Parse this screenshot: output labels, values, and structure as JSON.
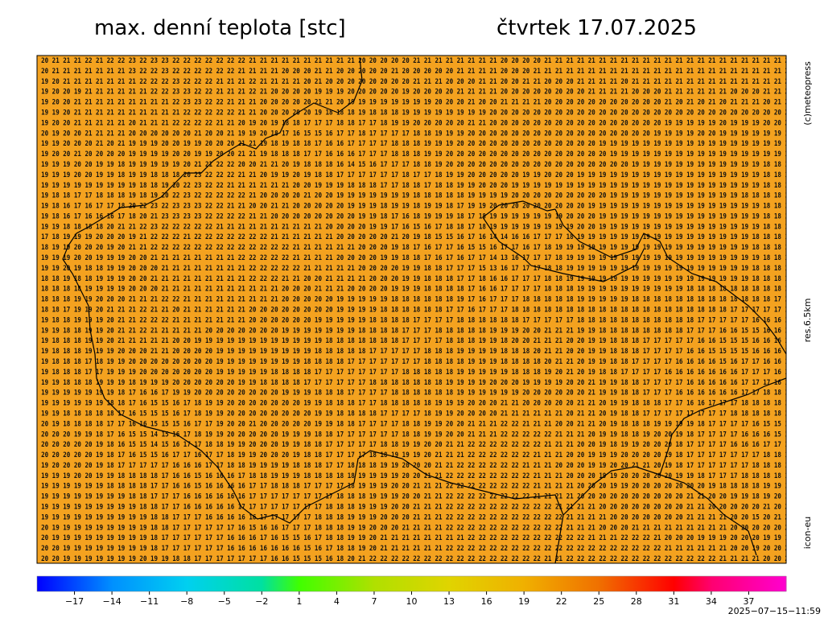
{
  "header": {
    "title": "max. denní teplota [stc]",
    "date": "čtvrtek 17.07.2025"
  },
  "credits": {
    "copyright": "(c)meteopress",
    "resolution": "res.6.5km",
    "model": "icon-eu",
    "timestamp": "2025−07−15−11:59"
  },
  "map": {
    "rows": [
      "0 20 21 21 21 22 21 22 22 23 22 23 23 22 22 22 22 22 22 22 21 21 21 21 21 21 21 21 21 21 20 20 20 20 20 21 21 21 21 21 21 21 21 20 20 20 20 21 21 21 21 21 21 21 21 21 21 21 21 21 21 21 21 21 21 21 21 21 21 2",
      "0 20 21 21 21 21 21 21 21 23 22 22 23 22 22 22 22 22 22 21 21 21 21 20 20 20 21 21 20 20 20 20 20 21 20 20 20 20 20 21 21 21 21 20 20 20 21 21 21 21 21 21 21 21 21 21 21 21 21 21 21 21 21 21 21 21 21 21 21 2",
      "9 19 20 21 21 21 21 21 21 21 22 22 22 23 22 22 22 21 21 21 22 21 21 21 21 20 21 20 20 20 20 20 20 20 20 21 21 21 20 20 20 21 21 20 20 21 21 20 20 20 21 21 21 21 20 21 21 21 21 21 21 21 21 21 21 21 21 21 21 2",
      "9 19 20 20 19 21 21 21 21 21 21 22 22 23 23 22 22 21 21 21 22 21 20 20 20 20 19 19 19 20 20 20 20 20 19 20 20 20 20 21 21 21 21 20 20 20 20 20 20 20 20 21 21 21 21 20 20 20 21 21 21 21 21 21 20 20 20 21 21 2",
      "9 19 20 20 21 21 21 21 21 21 21 21 21 22 23 23 22 22 21 21 21 20 20 20 20 20 21 21 20 19 19 19 19 19 19 19 19 20 20 20 21 20 20 21 21 21 21 20 20 20 20 20 20 20 20 20 20 20 21 20 21 20 21 20 21 21 21 20 21 2",
      "9 19 19 20 21 21 21 21 21 21 21 21 21 21 22 22 22 22 22 21 21 20 20 20 20 20 19 18 18 18 19 18 18 18 19 19 19 19 19 19 19 19 20 20 20 20 20 20 20 20 20 20 20 20 20 20 20 20 20 20 20 20 20 20 20 20 20 20 20 2",
      "9 19 20 20 21 21 21 21 21 20 21 21 21 22 22 22 22 21 21 20 19 20 19 18 18 17 17 17 18 18 17 17 18 19 19 20 20 20 20 20 21 21 20 20 20 20 20 20 20 20 20 20 20 20 20 20 20 20 19 19 19 19 19 20 19 19 19 20 20 2",
      "9 20 19 20 20 21 21 21 21 20 20 20 20 20 20 21 20 20 21 19 19 20 18 17 16 15 15 16 17 17 18 17 17 17 17 18 18 19 19 19 20 20 20 20 20 20 20 20 20 20 20 20 20 20 20 20 20 19 19 19 19 20 20 19 19 19 19 19 19 1",
      "9 19 19 20 20 20 21 20 21 19 19 19 20 20 19 19 20 20 20 21 21 19 18 19 18 18 17 16 16 17 17 17 17 18 18 18 19 19 19 20 20 20 20 20 20 20 20 20 20 20 20 20 19 19 19 19 19 19 19 19 19 19 19 19 19 19 19 19 19 1",
      "9 19 20 20 21 20 20 20 20 19 19 19 19 20 20 19 19 20 20 21 21 19 18 18 18 17 17 16 16 16 17 17 17 18 18 18 19 19 20 20 20 20 20 20 20 20 20 20 20 20 20 20 20 19 19 19 19 19 19 19 19 19 19 19 19 19 19 19 19 1",
      "8 19 19 19 20 20 19 19 18 19 19 19 19 19 20 21 21 22 22 20 20 21 21 20 19 18 18 18 16 14 15 16 17 17 17 18 18 19 20 20 20 20 20 20 20 20 20 20 20 20 20 20 20 20 20 19 19 19 19 19 19 19 19 19 19 19 19 18 18 1",
      "8 19 19 19 20 20 19 19 18 19 19 18 18 18 20 23 22 22 22 21 21 20 19 19 20 19 18 18 17 17 17 17 17 17 18 17 17 18 19 19 20 20 20 20 20 19 19 20 20 20 19 19 19 19 19 19 19 19 19 19 19 19 19 19 19 19 19 18 18 1",
      "8 19 19 19 19 19 19 19 19 19 18 18 19 20 22 23 22 22 21 21 21 21 21 21 20 20 19 19 19 18 18 18 17 17 18 18 17 18 18 19 19 20 20 20 19 19 19 19 19 19 19 19 19 19 19 19 19 19 19 19 19 19 19 19 19 19 19 18 18 1",
      "8 19 18 18 17 17 18 18 18 19 18 19 20 22 23 22 22 22 22 22 21 20 20 20 20 21 20 20 19 19 19 19 19 19 19 18 18 18 18 18 19 19 19 19 20 20 20 20 20 20 20 20 20 19 19 19 19 19 19 19 19 19 19 19 19 18 18 18 18 1",
      "8 19 18 16 17 16 17 17 18 20 22 23 22 23 23 23 22 22 21 21 20 20 21 21 20 20 20 20 20 19 19 19 18 19 19 18 19 19 18 17 19 19 20 20 20 20 20 20 20 20 20 19 19 19 19 19 19 19 19 19 19 19 19 19 19 19 19 18 18 1",
      "9 19 18 16 17 16 16 16 17 18 20 21 23 23 23 23 22 22 22 22 21 21 20 20 20 20 20 20 20 20 19 19 18 17 16 18 19 19 19 18 17 18 19 19 19 19 19 19 19 20 20 20 19 19 19 19 19 19 19 19 19 19 19 19 19 19 19 18 18 1",
      "8 19 19 18 18 18 18 20 21 21 22 23 22 22 22 22 22 21 21 21 21 21 21 21 21 21 21 20 20 20 20 19 19 17 16 15 16 17 18 18 17 18 19 19 19 19 19 19 19 19 20 20 19 19 19 19 19 19 19 19 19 19 19 19 19 19 19 18 18 1",
      "8 17 18 19 19 19 20 20 20 19 21 22 22 22 21 22 22 22 22 22 22 22 21 21 21 21 21 21 20 20 20 20 20 21 20 19 18 15 15 16 17 16 14 14 16 16 17 17 17 18 19 19 19 19 19 19 19 19 19 19 19 19 19 19 19 19 18 18 18 1",
      "7 18 19 19 20 20 20 19 20 21 21 22 22 22 22 22 22 22 22 22 22 22 22 22 21 21 21 21 21 21 20 20 20 19 18 17 16 17 17 16 15 15 16 17 17 16 17 18 19 19 19 19 19 19 19 19 19 19 19 19 19 19 19 19 19 19 18 18 18 1",
      "7 19 19 19 20 20 19 19 19 20 20 21 21 21 21 21 21 21 21 22 22 22 22 22 21 21 21 21 20 20 20 20 19 19 18 18 17 16 17 16 17 17 14 13 16 17 17 17 18 19 19 19 19 19 19 19 19 19 19 19 19 19 19 19 19 19 19 18 18 1",
      "7 19 19 20 19 18 18 19 19 20 20 20 21 21 21 21 21 21 21 21 22 22 22 22 22 21 21 21 21 21 20 20 20 20 19 19 18 18 17 17 17 15 13 16 17 17 17 18 18 19 19 19 19 19 19 19 19 19 19 19 19 19 19 19 19 19 18 18 18 1",
      "6 18 18 19 18 18 19 19 19 20 20 21 21 21 21 21 21 21 21 21 22 22 22 21 21 20 20 21 21 21 21 20 20 20 19 19 18 18 18 17 17 18 16 16 17 17 17 18 18 19 19 19 19 19 19 19 19 19 19 19 19 19 19 19 19 19 18 18 18 1",
      "7 18 18 18 18 19 19 19 19 20 20 20 21 21 21 21 21 21 21 21 21 21 21 20 20 20 21 21 21 20 20 20 20 19 19 19 18 18 18 18 17 16 16 17 17 17 17 18 18 18 19 19 19 19 19 19 19 19 19 19 18 18 18 18 18 18 18 18 18 1",
      "7 18 18 18 19 19 20 20 20 21 21 21 22 22 21 21 21 21 21 21 21 21 21 20 20 20 20 20 19 19 19 19 19 18 18 18 18 18 18 19 17 16 17 17 17 18 18 18 18 18 19 19 19 19 19 18 18 18 18 18 18 18 18 18 18 18 18 18 17 1",
      "7 18 18 17 19 19 20 21 21 21 22 21 21 20 21 21 21 21 21 21 20 20 20 20 20 20 20 20 19 19 19 19 18 18 18 18 18 18 17 17 16 17 17 17 18 18 18 18 18 18 18 18 18 18 18 18 18 18 18 18 18 18 18 18 17 17 17 17 17 1",
      "7 19 18 18 19 19 19 20 21 21 22 22 22 21 21 21 21 21 21 21 20 20 20 20 20 20 19 19 19 19 19 18 18 18 18 17 17 17 17 18 18 18 18 18 18 17 17 17 17 17 18 18 18 18 18 18 18 18 18 18 18 17 17 17 17 17 16 16 16 1",
      "8 19 19 18 18 19 19 20 21 21 22 21 21 21 21 21 20 20 20 20 20 20 20 19 19 19 19 19 19 19 18 18 18 18 17 17 17 18 18 18 18 18 19 19 19 20 20 21 21 21 19 19 18 18 18 18 18 18 18 18 17 17 17 16 16 15 15 16 16 1",
      "8 19 18 18 18 19 19 20 21 21 21 21 21 20 20 19 19 19 19 19 19 19 19 19 19 19 19 18 18 18 18 18 18 18 17 17 17 17 18 18 18 19 19 18 20 20 21 21 21 20 20 19 19 18 18 18 17 17 17 17 17 16 16 15 15 15 16 16 16 1",
      "9 19 18 18 18 19 19 19 20 20 20 21 21 20 20 20 20 19 19 19 19 19 19 19 19 19 18 18 18 18 18 17 17 17 17 17 18 18 18 19 19 19 19 18 18 18 20 21 21 20 20 19 19 18 18 18 17 17 17 17 16 16 15 15 15 15 16 16 16 1",
      "9 19 18 18 18 17 18 19 19 20 20 20 20 20 20 20 20 19 19 19 19 19 19 19 19 18 18 18 18 17 17 17 17 17 17 17 18 18 18 18 19 19 19 18 18 18 18 20 21 21 20 19 19 18 18 17 17 17 17 16 16 16 16 15 16 17 17 16 16 1",
      "9 19 18 18 18 17 17 19 19 19 20 20 20 20 20 20 20 19 19 19 19 19 18 18 18 18 17 17 17 17 17 17 17 17 18 18 18 18 18 19 19 19 19 19 18 18 18 19 20 21 20 19 18 18 17 17 17 17 16 16 16 16 16 16 16 17 17 17 16 1",
      "9 19 19 18 18 18 19 19 19 18 19 19 19 20 20 20 20 20 20 19 19 18 18 18 18 17 17 17 17 17 17 18 18 18 18 18 18 18 19 19 19 19 20 20 20 19 19 19 19 20 20 21 19 19 18 18 17 17 17 17 16 16 16 16 16 17 17 17 16 1",
      "9 19 19 19 19 19 19 19 18 17 16 16 17 19 19 20 20 20 20 20 20 20 20 19 19 19 18 18 18 17 17 17 17 18 18 18 18 18 18 19 19 19 19 19 19 20 20 20 20 20 20 21 19 19 18 18 17 17 17 16 16 16 16 16 16 17 17 18 18 1",
      "9 19 19 19 19 19 19 18 18 17 16 15 15 16 17 18 19 19 20 20 20 20 20 20 20 19 19 18 18 18 17 17 18 18 18 18 18 19 19 19 20 20 20 21 21 20 20 20 20 20 21 21 20 19 19 18 18 18 17 17 16 16 17 17 17 18 18 18 18 1",
      "9 19 19 18 18 18 18 18 17 16 15 15 15 16 17 18 19 19 20 20 20 20 20 20 20 20 19 19 18 18 18 18 17 17 17 17 18 19 19 20 20 20 20 21 21 21 21 21 21 20 21 21 20 19 18 18 17 17 17 17 17 17 17 17 18 18 18 18 18 1",
      "9 20 19 18 18 18 18 17 17 16 16 15 15 15 16 17 17 19 20 20 21 20 20 20 20 20 19 19 18 18 17 17 17 17 18 18 19 19 20 20 21 21 21 22 22 21 21 21 20 20 21 21 20 19 18 18 18 19 19 19 19 18 17 17 17 17 16 15 15 1",
      "9 20 20 20 19 19 18 17 16 15 15 14 15 16 17 18 19 19 20 20 20 20 20 19 19 19 18 18 17 17 17 17 17 17 18 18 19 19 20 20 21 21 21 22 22 22 22 22 21 21 21 20 19 19 18 18 19 20 20 19 18 17 17 17 17 16 16 16 15 1",
      "0 20 20 20 20 20 19 18 16 15 15 14 15 16 17 17 18 18 19 19 20 20 20 19 19 18 18 17 17 17 17 17 18 18 19 19 20 20 21 21 22 22 22 22 22 22 22 21 21 21 20 20 19 18 19 19 20 20 20 18 17 17 17 17 16 16 16 17 17 1",
      "0 20 20 20 20 20 19 18 17 16 15 15 16 17 17 16 17 17 18 19 19 20 20 20 19 18 18 17 17 17 17 18 18 19 19 19 20 21 21 21 22 22 22 22 22 22 21 21 21 20 20 19 19 19 20 20 20 20 19 18 17 17 17 17 17 17 17 18 18 1",
      "9 19 20 20 20 20 19 18 17 17 17 17 17 16 16 16 17 17 18 18 19 19 19 19 18 18 18 17 17 18 18 18 19 19 20 20 20 21 21 22 22 22 22 22 22 21 21 21 20 20 20 19 19 20 20 21 21 20 19 18 17 17 17 17 17 17 18 18 18 1",
      "9 19 19 19 20 20 19 19 18 18 18 18 17 16 16 15 16 16 16 17 18 18 19 19 19 18 18 18 18 18 19 19 19 19 20 20 21 21 22 22 22 22 22 22 22 22 21 21 21 20 20 20 19 19 20 20 20 20 20 19 19 18 17 17 17 18 18 18 18 1",
      "9 19 19 19 19 19 19 18 18 18 18 17 17 16 16 15 16 16 16 16 17 17 18 18 18 17 17 17 17 18 19 19 19 20 20 21 21 21 22 22 22 22 22 22 22 22 21 21 21 21 20 20 20 19 19 20 20 20 20 20 20 20 19 18 18 18 18 19 19 1",
      "0 19 19 19 19 19 19 19 19 18 18 17 17 17 16 16 16 16 16 16 17 17 17 17 17 17 17 17 18 18 18 19 19 19 20 20 21 21 22 22 22 22 22 22 22 22 21 21 21 21 20 20 20 20 20 20 20 20 20 20 21 21 20 20 19 19 18 19 20 1",
      "9 19 19 19 19 19 19 19 19 19 18 18 17 17 16 16 16 16 16 17 17 17 17 17 17 17 17 18 18 18 19 19 19 20 20 21 21 21 22 22 22 22 22 22 22 22 22 22 21 21 21 21 20 20 20 20 20 20 20 20 21 21 20 20 20 20 20 21 20 2",
      "9 19 19 19 19 19 19 19 19 19 19 18 18 17 17 17 16 16 16 16 16 17 17 17 17 17 18 18 18 19 19 19 20 20 20 21 21 21 22 22 22 22 22 22 22 22 22 22 22 21 21 21 21 20 20 20 20 20 20 20 21 21 21 21 20 20 15 20 21 2",
      "0 20 19 19 19 19 19 19 19 19 19 18 18 17 17 17 17 17 17 16 15 16 16 17 17 17 18 18 18 19 19 20 20 20 21 21 21 21 22 22 22 22 22 22 22 22 22 22 22 21 21 21 20 20 20 21 21 21 21 21 21 21 21 21 20 20 20 20 20 2",
      "1 20 19 19 19 19 19 19 19 19 19 18 17 17 17 17 17 17 16 16 16 17 16 15 15 16 17 18 18 19 19 20 21 21 21 21 21 21 21 21 22 22 22 22 22 22 22 22 22 22 22 21 21 21 22 22 22 21 20 20 20 19 19 19 20 20 20 19 19 1",
      "1 20 20 19 19 19 19 19 19 19 19 18 17 17 17 17 17 17 16 16 16 16 16 16 16 15 16 17 18 18 19 20 21 21 21 21 21 21 22 22 22 22 22 22 22 22 22 22 22 22 22 22 22 22 22 22 22 22 21 21 21 21 21 21 20 20 19 20 20 2",
      "1 20 20 19 19 19 19 19 19 19 20 19 19 18 18 17 17 17 17 17 17 17 16 16 15 15 15 16 18 20 21 22 22 22 22 22 22 22 22 22 22 22 22 22 22 22 22 21 21 22 22 22 22 22 22 22 22 22 22 22 22 22 22 21 21 21 21 20 20 2"
    ]
  },
  "colorbar": {
    "lim": [
      -20,
      40
    ],
    "ticks": [
      {
        "value": -17,
        "label": "−17"
      },
      {
        "value": -14,
        "label": "−14"
      },
      {
        "value": -11,
        "label": "−11"
      },
      {
        "value": -8,
        "label": "−8"
      },
      {
        "value": -5,
        "label": "−5"
      },
      {
        "value": -2,
        "label": "−2"
      },
      1,
      4,
      7,
      10,
      13,
      16,
      19,
      22,
      25,
      28,
      31,
      34,
      37
    ],
    "stops": [
      {
        "value": -20,
        "color": "#0000ff"
      },
      {
        "value": -14,
        "color": "#0090ff"
      },
      {
        "value": -8,
        "color": "#00d0f0"
      },
      {
        "value": -2,
        "color": "#00e0a0"
      },
      {
        "value": 1,
        "color": "#40ff00"
      },
      {
        "value": 7,
        "color": "#b0e000"
      },
      {
        "value": 13,
        "color": "#e0d400"
      },
      {
        "value": 19,
        "color": "#f0b000"
      },
      {
        "value": 25,
        "color": "#f07000"
      },
      {
        "value": 31,
        "color": "#ff0000"
      },
      {
        "value": 34,
        "color": "#ff0070"
      },
      {
        "value": 40,
        "color": "#ff00d0"
      }
    ]
  }
}
